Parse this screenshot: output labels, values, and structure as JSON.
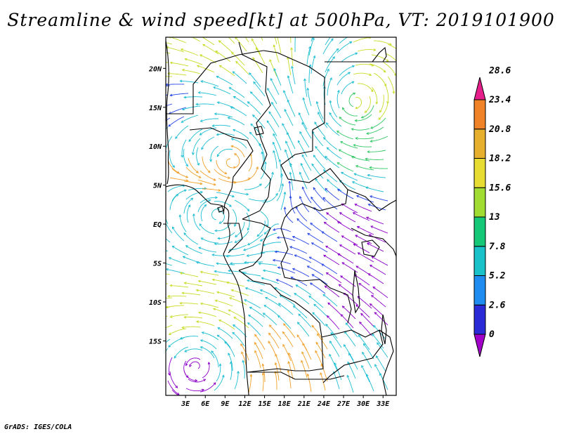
{
  "title": "Streamline & wind speed[kt] at 500hPa, VT: 2019101900",
  "footer": "GrADS: IGES/COLA",
  "map": {
    "lon_range": [
      0,
      35
    ],
    "lat_range": [
      -22,
      24
    ],
    "lat_ticks": [
      {
        "value": 20,
        "label": "20N"
      },
      {
        "value": 15,
        "label": "15N"
      },
      {
        "value": 10,
        "label": "10N"
      },
      {
        "value": 5,
        "label": "5N"
      },
      {
        "value": 0,
        "label": "EQ"
      },
      {
        "value": -5,
        "label": "5S"
      },
      {
        "value": -10,
        "label": "10S"
      },
      {
        "value": -15,
        "label": "15S"
      }
    ],
    "lon_ticks": [
      {
        "value": 3,
        "label": "3E"
      },
      {
        "value": 6,
        "label": "6E"
      },
      {
        "value": 9,
        "label": "9E"
      },
      {
        "value": 12,
        "label": "12E"
      },
      {
        "value": 15,
        "label": "15E"
      },
      {
        "value": 18,
        "label": "18E"
      },
      {
        "value": 21,
        "label": "21E"
      },
      {
        "value": 24,
        "label": "24E"
      },
      {
        "value": 27,
        "label": "27E"
      },
      {
        "value": 30,
        "label": "30E"
      },
      {
        "value": 33,
        "label": "33E"
      }
    ]
  },
  "colorbar": {
    "colors": [
      "#a000c8",
      "#2a2ad6",
      "#1e8cf0",
      "#19c2c8",
      "#14c878",
      "#a0dc32",
      "#e6dc32",
      "#e6af2d",
      "#f08228",
      "#e61e8c"
    ],
    "labels": [
      "0",
      "2.6",
      "5.2",
      "7.8",
      "13",
      "15.6",
      "18.2",
      "20.8",
      "23.4",
      "28.6"
    ]
  },
  "wind_colors": {
    "calm": "#8c00c8",
    "light": "#2846e6",
    "moderate": "#1ebed2",
    "fresh": "#32c864",
    "strong": "#c8dc28",
    "very_strong": "#f0a028"
  }
}
